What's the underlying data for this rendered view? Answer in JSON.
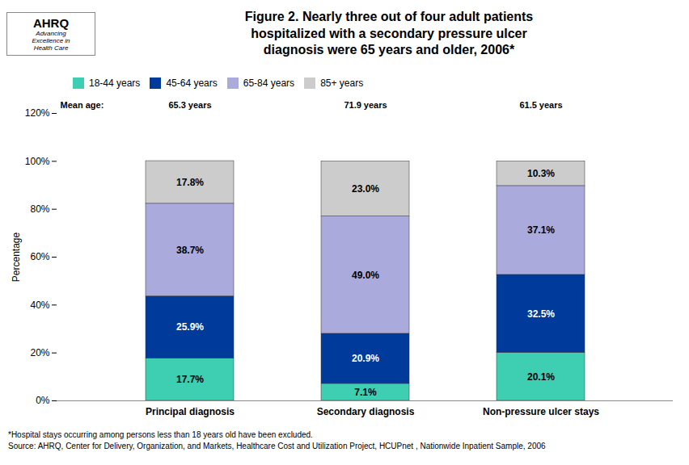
{
  "chart_data": {
    "type": "bar",
    "stacked": true,
    "title": "Figure 2.  Nearly three out of four adult patients\nhospitalized with a secondary pressure ulcer\ndiagnosis were 65 years and older, 2006*",
    "categories": [
      "Principal diagnosis",
      "Secondary diagnosis",
      "Non-pressure ulcer stays"
    ],
    "series": [
      {
        "name": "18-44 years",
        "color": "#3ECFB2",
        "values": [
          17.7,
          7.1,
          20.1
        ],
        "value_labels": [
          "17.7%",
          "7.1%",
          "20.1%"
        ]
      },
      {
        "name": "45-64 years",
        "color": "#003A9B",
        "values": [
          25.9,
          20.9,
          32.5
        ],
        "value_labels": [
          "25.9%",
          "20.9%",
          "32.5%"
        ]
      },
      {
        "name": "65-84 years",
        "color": "#AAAADD",
        "values": [
          38.7,
          49.0,
          37.1
        ],
        "value_labels": [
          "38.7%",
          "49.0%",
          "37.1%"
        ]
      },
      {
        "name": "85+ years",
        "color": "#CCCCCC",
        "values": [
          17.8,
          23.0,
          10.3
        ],
        "value_labels": [
          "17.8%",
          "23.0%",
          "10.3%"
        ]
      }
    ],
    "ylabel": "Percentage",
    "ylim": [
      0,
      120
    ],
    "yticks": [
      {
        "value": 0,
        "label": "0%"
      },
      {
        "value": 20,
        "label": "20%"
      },
      {
        "value": 40,
        "label": "40%"
      },
      {
        "value": 60,
        "label": "60%"
      },
      {
        "value": 80,
        "label": "80%"
      },
      {
        "value": 100,
        "label": "100%"
      },
      {
        "value": 120,
        "label": "120%"
      }
    ],
    "mean_age_label": "Mean age:",
    "mean_ages": [
      "65.3 years",
      "71.9 years",
      "61.5 years"
    ],
    "annotations": [
      "AHRQ",
      "Advancing\nExcellence in\nHealth Care",
      "*Hospital stays occurring among persons less than 18 years old have been excluded.",
      "Source: AHRQ, Center for Delivery, Organization, and Markets, Healthcare Cost and Utilization Project, HCUPnet , Nationwide Inpatient Sample, 2006"
    ],
    "data_labels": true,
    "grid": false,
    "legend": "top"
  }
}
